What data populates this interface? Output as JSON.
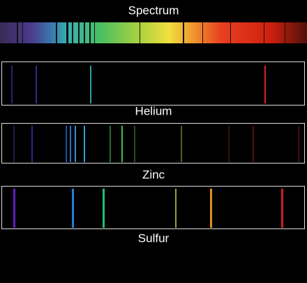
{
  "header": {
    "title": "Spectrum"
  },
  "spectra": [
    {
      "label": "Helium"
    },
    {
      "label": "Zinc"
    },
    {
      "label": "Sulfur"
    }
  ]
}
